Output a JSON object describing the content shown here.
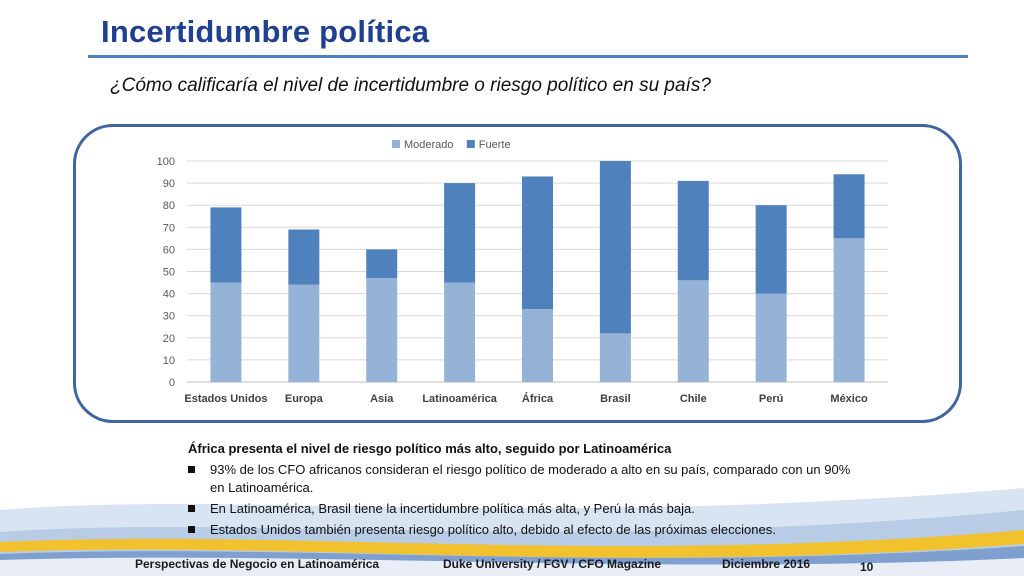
{
  "slide": {
    "title": "Incertidumbre política",
    "question": "¿Cómo calificaría el nivel de incertidumbre o riesgo político en su país?"
  },
  "summary": {
    "heading": "África presenta el nivel de riesgo político más alto, seguido por Latinoamérica",
    "bullets": [
      "93% de los CFO africanos consideran el riesgo político de moderado a alto en su país, comparado con un 90% en Latinoamérica.",
      "En Latinoamérica, Brasil tiene la incertidumbre política más alta, y Perú la más baja.",
      "Estados Unidos también presenta riesgo político alto, debido al efecto de las próximas elecciones."
    ]
  },
  "footer": {
    "left": "Perspectivas de Negocio en Latinoamérica",
    "center": "Duke University / FGV / CFO Magazine",
    "right": "Diciembre 2016",
    "page": "10"
  },
  "colors": {
    "moderado": "#95b3d7",
    "fuerte": "#4f81bd",
    "title": "#1f3f8f",
    "frame": "#3f65a0"
  },
  "chart_data": {
    "type": "bar",
    "stacked": true,
    "categories": [
      "Estados Unidos",
      "Europa",
      "Asia",
      "Latinoamérica",
      "África",
      "Brasil",
      "Chile",
      "Perú",
      "México"
    ],
    "series": [
      {
        "name": "Moderado",
        "values": [
          45,
          44,
          47,
          45,
          33,
          22,
          46,
          40,
          65
        ]
      },
      {
        "name": "Fuerte",
        "values": [
          34,
          25,
          13,
          45,
          60,
          78,
          45,
          40,
          29
        ]
      }
    ],
    "ylim": [
      0,
      100
    ],
    "yticks": [
      0,
      10,
      20,
      30,
      40,
      50,
      60,
      70,
      80,
      90,
      100
    ],
    "grid": true,
    "legend": "top-center"
  }
}
